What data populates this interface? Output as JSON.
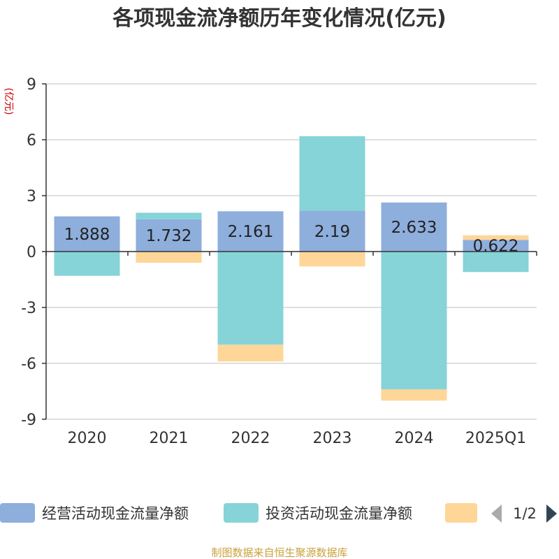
{
  "chart_data": {
    "type": "bar",
    "stacked": true,
    "title": "各项现金流净额历年变化情况(亿元)",
    "ylabel": "(亿元)",
    "categories": [
      "2020",
      "2021",
      "2022",
      "2023",
      "2024",
      "2025Q1"
    ],
    "ylim": [
      -9,
      9
    ],
    "yticks": [
      9,
      6,
      3,
      0,
      -3,
      -6,
      -9
    ],
    "grid": true,
    "series": [
      {
        "name": "经营活动现金流量净额",
        "color": "#8eaedc",
        "values": [
          1.888,
          1.732,
          2.161,
          2.19,
          2.633,
          0.622
        ]
      },
      {
        "name": "投资活动现金流量净额",
        "color": "#86d3d8",
        "values": [
          -1.3,
          0.35,
          -5.0,
          4.0,
          -7.4,
          -1.1
        ]
      },
      {
        "name": "",
        "color": "#fdd698",
        "values": [
          0,
          -0.6,
          -0.9,
          -0.8,
          -0.6,
          0.25
        ]
      }
    ],
    "data_labels": [
      "1.888",
      "1.732",
      "2.161",
      "2.19",
      "2.633",
      "0.622"
    ],
    "legend_position": "bottom",
    "legend_page": "1/2"
  },
  "source": "制图数据来自恒生聚源数据库"
}
